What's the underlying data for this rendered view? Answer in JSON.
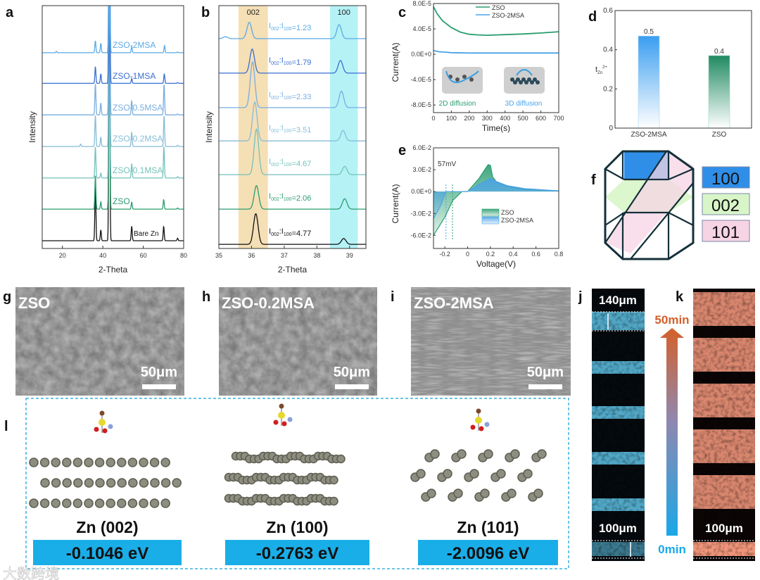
{
  "panels": {
    "a": "a",
    "b": "b",
    "c": "c",
    "d": "d",
    "e": "e",
    "f": "f",
    "g": "g",
    "h": "h",
    "i": "i",
    "j": "j",
    "k": "k",
    "l": "l"
  },
  "colors": {
    "zso": "#2a9d6f",
    "msa2": "#4aa3e8",
    "bare": "#111111",
    "band002": "#f3d9a8",
    "band100": "#a8f0f4",
    "energy_box": "#1aaee8",
    "j_band": "#5fc3e6",
    "k_band": "#f0957a"
  },
  "chart_data": [
    {
      "id": "a",
      "type": "line",
      "xlabel": "2-Theta",
      "ylabel": "Intensity",
      "xlim": [
        10,
        80
      ],
      "ylim": [
        0,
        100
      ],
      "xticks": [
        20,
        40,
        60,
        80
      ],
      "series": [
        {
          "name": "Bare Zn",
          "color": "#111111",
          "baseline": 3.2,
          "peaks": [
            [
              36.3,
              24
            ],
            [
              39.0,
              4.5
            ],
            [
              43.2,
              120
            ],
            [
              54.3,
              6
            ],
            [
              70.1,
              6
            ],
            [
              77.0,
              1
            ]
          ]
        },
        {
          "name": "ZSO",
          "color": "#2a9d6f",
          "baseline": 16.2,
          "peaks": [
            [
              36.3,
              14
            ],
            [
              39.0,
              3
            ],
            [
              43.2,
              120
            ],
            [
              54.3,
              3
            ],
            [
              70.1,
              4
            ],
            [
              77.0,
              0.5
            ]
          ]
        },
        {
          "name": "ZSO-0.1MSA",
          "color": "#72c2bb",
          "baseline": 29,
          "peaks": [
            [
              36.3,
              13
            ],
            [
              39.0,
              2
            ],
            [
              43.2,
              120
            ],
            [
              54.3,
              6
            ],
            [
              70.2,
              13
            ],
            [
              77.0,
              0.6
            ]
          ]
        },
        {
          "name": "ZSO-0.2MSA",
          "color": "#86bcd6",
          "baseline": 42,
          "peaks": [
            [
              29.0,
              1
            ],
            [
              36.3,
              13
            ],
            [
              39.0,
              4
            ],
            [
              43.2,
              120
            ],
            [
              54.3,
              6
            ],
            [
              70.3,
              13
            ],
            [
              77.0,
              0.5
            ]
          ]
        },
        {
          "name": "ZSO-0.5MSA",
          "color": "#78ade0",
          "baseline": 55,
          "peaks": [
            [
              36.3,
              13
            ],
            [
              39.0,
              5
            ],
            [
              43.2,
              120
            ],
            [
              54.3,
              6
            ],
            [
              70.3,
              13
            ],
            [
              77.0,
              0.4
            ]
          ]
        },
        {
          "name": "ZSO-1MSA",
          "color": "#3a6fd0",
          "baseline": 68,
          "peaks": [
            [
              36.3,
              7
            ],
            [
              39.0,
              4
            ],
            [
              43.2,
              120
            ],
            [
              54.3,
              2
            ],
            [
              70.4,
              4
            ],
            [
              77.0,
              0.3
            ]
          ]
        },
        {
          "name": "ZSO-2MSA",
          "color": "#5aaae6",
          "baseline": 80.6,
          "peaks": [
            [
              17.0,
              0.6
            ],
            [
              36.3,
              5
            ],
            [
              39.0,
              4
            ],
            [
              43.2,
              120
            ],
            [
              54.3,
              2.5
            ],
            [
              70.5,
              3
            ],
            [
              77.0,
              0.3
            ]
          ]
        }
      ]
    },
    {
      "id": "b",
      "type": "line",
      "xlabel": "2-Theta",
      "ylabel": "Intensity",
      "xlim": [
        35,
        39.5
      ],
      "ylim": [
        0,
        100
      ],
      "xticks": [
        35,
        36,
        37,
        38,
        39
      ],
      "bands": [
        {
          "label": "002",
          "range": [
            35.6,
            36.5
          ]
        },
        {
          "label": "100",
          "range": [
            38.4,
            39.25
          ]
        }
      ],
      "series": [
        {
          "name": "ZSO-2MSA",
          "color": "#5aaae6",
          "baseline": 86.4,
          "peaks": [
            [
              35.2,
              0.8
            ],
            [
              35.93,
              6.7
            ],
            [
              38.68,
              5.8
            ]
          ],
          "ratio": "=1.23"
        },
        {
          "name": "ZSO-1MSA",
          "color": "#3a6fd0",
          "baseline": 72.2,
          "peaks": [
            [
              36.02,
              9.9
            ],
            [
              38.72,
              5.2
            ]
          ],
          "ratio": "=1.79"
        },
        {
          "name": "ZSO-0.5MSA",
          "color": "#78ade0",
          "baseline": 58,
          "peaks": [
            [
              36.03,
              18.8
            ],
            [
              38.75,
              6.8
            ]
          ],
          "ratio": "=2.33"
        },
        {
          "name": "ZSO-0.2MSA",
          "color": "#86bcd6",
          "baseline": 44.3,
          "peaks": [
            [
              36.1,
              16
            ],
            [
              38.8,
              4.3
            ]
          ],
          "ratio": "=3.51"
        },
        {
          "name": "ZSO-0.1MSA",
          "color": "#72c2bb",
          "baseline": 30.4,
          "peaks": [
            [
              36.15,
              18.8
            ],
            [
              38.85,
              3.4
            ]
          ],
          "ratio": "=4.67"
        },
        {
          "name": "ZSO",
          "color": "#2a9d6f",
          "baseline": 16.2,
          "peaks": [
            [
              36.15,
              9.7
            ],
            [
              38.85,
              4.3
            ]
          ],
          "ratio": "=2.06"
        },
        {
          "name": "Bare Zn",
          "color": "#111111",
          "baseline": 1.7,
          "peaks": [
            [
              36.13,
              12.6
            ],
            [
              38.82,
              2.4
            ]
          ],
          "ratio": "=4.77"
        }
      ],
      "ratio_prefix": "I",
      "ratio_sub1": "002",
      "ratio_sep": ":I",
      "ratio_sub2": "100"
    },
    {
      "id": "c",
      "type": "line",
      "xlabel": "Time(s)",
      "ylabel": "Current(A)",
      "xlim": [
        0,
        700
      ],
      "ylim": [
        -9.2e-05,
        8e-05
      ],
      "xticks": [
        0,
        100,
        200,
        300,
        400,
        500,
        600,
        700
      ],
      "yticks": [
        {
          "v": 8e-05,
          "label": "8.0E-5"
        },
        {
          "v": 4e-05,
          "label": "4.0E-5"
        },
        {
          "v": 0,
          "label": "0.0E+0"
        },
        {
          "v": -4e-05,
          "label": "-4.0E-5"
        },
        {
          "v": -8e-05,
          "label": "-8.0E-5"
        }
      ],
      "legend_position": "top-right",
      "series": [
        {
          "name": "ZSO",
          "color": "#2a9d6f",
          "x": [
            0,
            20,
            50,
            100,
            150,
            200,
            250,
            300,
            400,
            500,
            600,
            700
          ],
          "y": [
            7.5e-05,
            6.4e-05,
            5.3e-05,
            4.2e-05,
            3.5e-05,
            3.15e-05,
            3.05e-05,
            3e-05,
            3.1e-05,
            3.2e-05,
            3.35e-05,
            3.55e-05
          ]
        },
        {
          "name": "ZSO-2MSA",
          "color": "#4aa3e8",
          "x": [
            0,
            30,
            100,
            200,
            400,
            700
          ],
          "y": [
            6e-06,
            4e-06,
            2.5e-06,
            2e-06,
            2e-06,
            2e-06
          ]
        }
      ],
      "annotations": [
        "2D diffusion",
        "3D diffusion"
      ]
    },
    {
      "id": "d",
      "type": "bar",
      "xlabel": "",
      "ylabel": "t",
      "ylabel_sub": "Zn",
      "ylabel_sup": "2+",
      "ylim": [
        0,
        0.6
      ],
      "yticks": [
        0.0,
        0.2,
        0.4,
        0.6
      ],
      "categories": [
        "ZSO-2MSA",
        "ZSO"
      ],
      "values": [
        0.47,
        0.37
      ],
      "data_labels": [
        "0.5",
        "0.4"
      ],
      "colors": [
        "#3a9ef0",
        "#1f8a62"
      ]
    },
    {
      "id": "e",
      "type": "area",
      "xlabel": "Voltage(V)",
      "ylabel": "Current(A)",
      "xlim": [
        -0.3,
        0.8
      ],
      "ylim": [
        -0.078,
        0.06
      ],
      "xticks": [
        -0.2,
        0.0,
        0.2,
        0.4,
        0.6,
        0.8
      ],
      "yticks": [
        {
          "v": 0.06,
          "label": "6.0E-2"
        },
        {
          "v": 0.03,
          "label": "3.0E-2"
        },
        {
          "v": 0,
          "label": "0.0E+0"
        },
        {
          "v": -0.03,
          "label": "-3.0E-2"
        },
        {
          "v": -0.06,
          "label": "-6.0E-2"
        }
      ],
      "legend_position": "center-right",
      "annotation": "57mV",
      "dashed_x": [
        -0.19,
        -0.133
      ],
      "series": [
        {
          "name": "ZSO",
          "color": "#2a9d6f",
          "x": [
            -0.3,
            -0.2,
            -0.13,
            -0.05,
            0.0,
            0.1,
            0.15,
            0.18,
            0.2,
            0.22,
            0.26,
            0.35,
            0.5,
            0.8
          ],
          "y": [
            -0.06,
            -0.035,
            -0.012,
            0,
            0,
            0.018,
            0.03,
            0.037,
            0.036,
            0.02,
            0.012,
            0.007,
            0.003,
            0.001
          ]
        },
        {
          "name": "ZSO-2MSA",
          "color": "#4aa3e8",
          "x": [
            -0.3,
            -0.24,
            -0.19,
            -0.1,
            0.0,
            0.1,
            0.2,
            0.25,
            0.35,
            0.5,
            0.8
          ],
          "y": [
            -0.037,
            -0.02,
            0,
            0,
            0,
            0.01,
            0.018,
            0.014,
            0.008,
            0.004,
            0.001
          ]
        }
      ]
    }
  ],
  "facets": [
    {
      "label": "100",
      "color": "#2f8fe8"
    },
    {
      "label": "002",
      "color": "#d8f5c8"
    },
    {
      "label": "101",
      "color": "#f6d4e4"
    }
  ],
  "sem": [
    {
      "label": "ZSO",
      "scale": "50μm"
    },
    {
      "label": "ZSO-0.2MSA",
      "scale": "50μm"
    },
    {
      "label": "ZSO-2MSA",
      "scale": "50μm"
    }
  ],
  "cross_section": {
    "j_top": "140μm",
    "j_bottom": "100μm",
    "k_bottom": "100μm",
    "time_top": "50min",
    "time_bottom": "0min"
  },
  "adsorption": [
    {
      "facet": "Zn (002)",
      "energy": "-0.1046 eV"
    },
    {
      "facet": "Zn (100)",
      "energy": "-0.2763 eV"
    },
    {
      "facet": "Zn (101)",
      "energy": "-2.0096 eV"
    }
  ],
  "watermark": "大数跨境"
}
